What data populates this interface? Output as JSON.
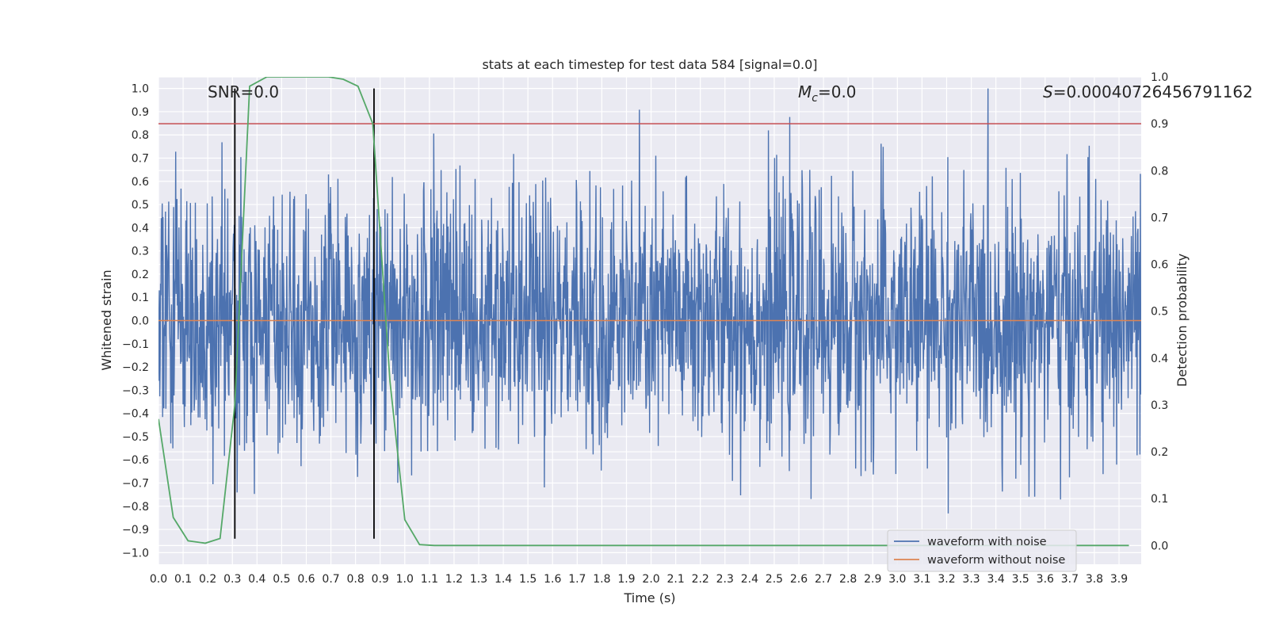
{
  "chart_data": {
    "type": "line",
    "title": "stats at each timestep for test data 584 [signal=0.0]",
    "xlabel": "Time (s)",
    "ylabel": "Whitened strain",
    "y2label": "Detection probability",
    "xlim": [
      0.0,
      3.99
    ],
    "ylim": [
      -1.05,
      1.05
    ],
    "y2lim": [
      -0.04,
      1.0
    ],
    "xticks": [
      "0.0",
      "0.1",
      "0.2",
      "0.3",
      "0.4",
      "0.5",
      "0.6",
      "0.7",
      "0.8",
      "0.9",
      "1.0",
      "1.1",
      "1.2",
      "1.3",
      "1.4",
      "1.5",
      "1.6",
      "1.7",
      "1.8",
      "1.9",
      "2.0",
      "2.1",
      "2.2",
      "2.3",
      "2.4",
      "2.5",
      "2.6",
      "2.7",
      "2.8",
      "2.9",
      "3.0",
      "3.1",
      "3.2",
      "3.3",
      "3.4",
      "3.5",
      "3.6",
      "3.7",
      "3.8",
      "3.9"
    ],
    "yticks": [
      "1.0",
      "0.9",
      "0.8",
      "0.7",
      "0.6",
      "0.5",
      "0.4",
      "0.3",
      "0.2",
      "0.1",
      "0.0",
      "-0.1",
      "-0.2",
      "-0.3",
      "-0.4",
      "-0.5",
      "-0.6",
      "-0.7",
      "-0.8",
      "-0.9",
      "-1.0"
    ],
    "y2ticks": [
      "0.0",
      "0.1",
      "0.2",
      "0.3",
      "0.4",
      "0.5",
      "0.6",
      "0.7",
      "0.8",
      "0.9",
      "1.0"
    ],
    "grid": true,
    "legend_position": "lower-right",
    "annotations": {
      "snr": "SNR=0.0",
      "mc_symbol": "M",
      "mc_sub": "c",
      "mc_value": "=0.0",
      "s_symbol": "S",
      "s_value": "=0.00040726456791162"
    },
    "series": [
      {
        "name": "waveform with noise",
        "color": "#4c72b0",
        "axis": "left",
        "style": "dense-noise",
        "amplitude": 0.5,
        "n_points": 2400
      },
      {
        "name": "waveform without noise",
        "color": "#dd8452",
        "axis": "left",
        "y_constant": 0.0
      },
      {
        "color": "#55a868",
        "axis": "right",
        "x": [
          0.0,
          0.06,
          0.12,
          0.19,
          0.25,
          0.31,
          0.37,
          0.44,
          0.5,
          0.56,
          0.62,
          0.69,
          0.75,
          0.81,
          0.87,
          0.94,
          1.0,
          1.06,
          1.12,
          1.19,
          1.25,
          1.31,
          1.37,
          1.44,
          1.5,
          1.56,
          1.62,
          1.69,
          1.75,
          1.81,
          1.87,
          1.94,
          2.0,
          2.06,
          2.12,
          2.19,
          2.25,
          2.31,
          2.37,
          2.44,
          2.5,
          2.56,
          2.62,
          2.69,
          2.75,
          2.81,
          2.87,
          2.94,
          3.0,
          3.06,
          3.12,
          3.19,
          3.25,
          3.31,
          3.37,
          3.44,
          3.5,
          3.56,
          3.62,
          3.69,
          3.75,
          3.81,
          3.87,
          3.94
        ],
        "y": [
          0.27,
          0.06,
          0.01,
          0.005,
          0.015,
          0.3,
          0.98,
          1.0,
          1.0,
          1.0,
          1.0,
          1.0,
          0.995,
          0.98,
          0.9,
          0.35,
          0.055,
          0.002,
          0.0,
          0.0,
          0.0,
          0.0,
          0.0,
          0.0,
          0.0,
          0.0,
          0.0,
          0.0,
          0.0,
          0.0,
          0.0,
          0.0,
          0.0,
          0.0,
          0.0,
          0.0,
          0.0,
          0.0,
          0.0,
          0.0,
          0.0,
          0.0,
          0.0,
          0.0,
          0.0,
          0.0,
          0.0,
          0.0,
          0.0,
          0.0,
          0.0,
          0.0,
          0.0,
          0.0,
          0.0,
          0.0,
          0.0,
          0.0,
          0.0,
          0.0,
          0.0,
          0.0,
          0.0,
          0.0
        ]
      },
      {
        "color": "#c44e52",
        "axis": "right",
        "y_constant": 0.9,
        "style": "threshold"
      }
    ],
    "vlines": [
      {
        "x": 0.31,
        "ymin": -0.94,
        "ymax": 1.0,
        "color": "#000000"
      },
      {
        "x": 0.875,
        "ymin": -0.94,
        "ymax": 1.0,
        "color": "#000000"
      }
    ]
  }
}
